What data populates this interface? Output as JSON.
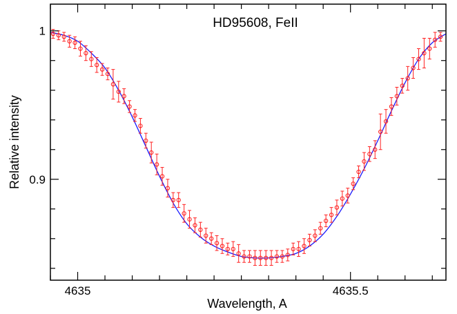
{
  "chart_data": {
    "type": "scatter",
    "title": "HD95608, FeII",
    "xlabel": "Wavelength, A",
    "ylabel": "Relative intensity",
    "xlim": [
      4634.95,
      4635.675
    ],
    "ylim": [
      0.832,
      1.018
    ],
    "x_ticks": [
      4635,
      4635.5
    ],
    "x_tick_labels": [
      "4635",
      "4635.5"
    ],
    "y_ticks": [
      0.9,
      1.0
    ],
    "y_tick_labels": [
      "0.9",
      "1"
    ],
    "grid": false,
    "colors": {
      "observed": "#ff2020",
      "fit": "#1a1aff",
      "axes": "#000000"
    },
    "series": [
      {
        "kind": "points-with-error-bars",
        "x": [
          4634.955,
          4634.965,
          4634.975,
          4634.985,
          4634.995,
          4635.005,
          4635.015,
          4635.025,
          4635.035,
          4635.045,
          4635.055,
          4635.065,
          4635.075,
          4635.085,
          4635.095,
          4635.105,
          4635.115,
          4635.125,
          4635.135,
          4635.145,
          4635.155,
          4635.165,
          4635.175,
          4635.185,
          4635.195,
          4635.205,
          4635.215,
          4635.225,
          4635.235,
          4635.245,
          4635.255,
          4635.265,
          4635.275,
          4635.285,
          4635.295,
          4635.305,
          4635.315,
          4635.325,
          4635.335,
          4635.345,
          4635.355,
          4635.365,
          4635.375,
          4635.385,
          4635.395,
          4635.405,
          4635.415,
          4635.425,
          4635.435,
          4635.445,
          4635.455,
          4635.465,
          4635.475,
          4635.485,
          4635.495,
          4635.505,
          4635.515,
          4635.525,
          4635.535,
          4635.545,
          4635.555,
          4635.565,
          4635.575,
          4635.585,
          4635.595,
          4635.605,
          4635.615,
          4635.625,
          4635.635,
          4635.645,
          4635.655,
          4635.665
        ],
        "y": [
          0.998,
          0.997,
          0.996,
          0.993,
          0.992,
          0.988,
          0.985,
          0.981,
          0.977,
          0.974,
          0.971,
          0.964,
          0.959,
          0.956,
          0.949,
          0.943,
          0.936,
          0.926,
          0.918,
          0.91,
          0.902,
          0.894,
          0.886,
          0.886,
          0.877,
          0.873,
          0.869,
          0.866,
          0.862,
          0.86,
          0.857,
          0.855,
          0.853,
          0.853,
          0.85,
          0.848,
          0.848,
          0.847,
          0.847,
          0.847,
          0.847,
          0.848,
          0.848,
          0.849,
          0.853,
          0.853,
          0.855,
          0.859,
          0.862,
          0.867,
          0.872,
          0.876,
          0.881,
          0.887,
          0.889,
          0.897,
          0.905,
          0.912,
          0.917,
          0.92,
          0.932,
          0.939,
          0.949,
          0.956,
          0.963,
          0.968,
          0.975,
          0.981,
          0.985,
          0.988,
          0.994,
          0.996
        ],
        "yerr": [
          0.003,
          0.003,
          0.003,
          0.004,
          0.004,
          0.005,
          0.005,
          0.005,
          0.005,
          0.004,
          0.004,
          0.01,
          0.007,
          0.005,
          0.004,
          0.004,
          0.005,
          0.005,
          0.007,
          0.007,
          0.006,
          0.006,
          0.005,
          0.005,
          0.006,
          0.006,
          0.005,
          0.005,
          0.005,
          0.004,
          0.005,
          0.005,
          0.004,
          0.005,
          0.006,
          0.004,
          0.004,
          0.005,
          0.005,
          0.005,
          0.005,
          0.004,
          0.004,
          0.004,
          0.004,
          0.005,
          0.005,
          0.004,
          0.004,
          0.004,
          0.004,
          0.005,
          0.005,
          0.005,
          0.005,
          0.004,
          0.004,
          0.006,
          0.005,
          0.006,
          0.012,
          0.008,
          0.006,
          0.006,
          0.005,
          0.008,
          0.007,
          0.007,
          0.01,
          0.007,
          0.005,
          0.003
        ]
      },
      {
        "kind": "line",
        "x": [
          4634.95,
          4634.975,
          4635,
          4635.025,
          4635.05,
          4635.075,
          4635.1,
          4635.125,
          4635.15,
          4635.175,
          4635.2,
          4635.225,
          4635.25,
          4635.275,
          4635.3,
          4635.325,
          4635.35,
          4635.375,
          4635.4,
          4635.425,
          4635.45,
          4635.475,
          4635.5,
          4635.525,
          4635.55,
          4635.575,
          4635.6,
          4635.625,
          4635.65,
          4635.675
        ],
        "y": [
          0.999,
          0.997,
          0.993,
          0.985,
          0.975,
          0.96,
          0.942,
          0.922,
          0.902,
          0.884,
          0.87,
          0.861,
          0.855,
          0.851,
          0.848,
          0.847,
          0.847,
          0.848,
          0.85,
          0.855,
          0.863,
          0.875,
          0.89,
          0.907,
          0.926,
          0.946,
          0.965,
          0.981,
          0.992,
          0.998
        ]
      }
    ]
  }
}
